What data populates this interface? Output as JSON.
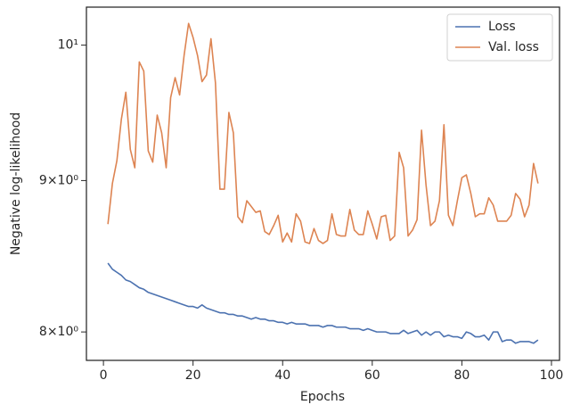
{
  "chart_data": {
    "type": "line",
    "xlabel": "Epochs",
    "ylabel": "Negative log-likelihood",
    "x": [
      1,
      2,
      3,
      4,
      5,
      6,
      7,
      8,
      9,
      10,
      11,
      12,
      13,
      14,
      15,
      16,
      17,
      18,
      19,
      20,
      21,
      22,
      23,
      24,
      25,
      26,
      27,
      28,
      29,
      30,
      31,
      32,
      33,
      34,
      35,
      36,
      37,
      38,
      39,
      40,
      41,
      42,
      43,
      44,
      45,
      46,
      47,
      48,
      49,
      50,
      51,
      52,
      53,
      54,
      55,
      56,
      57,
      58,
      59,
      60,
      61,
      62,
      63,
      64,
      65,
      66,
      67,
      68,
      69,
      70,
      71,
      72,
      73,
      74,
      75,
      76,
      77,
      78,
      79,
      80,
      81,
      82,
      83,
      84,
      85,
      86,
      87,
      88,
      89,
      90,
      91,
      92,
      93,
      94,
      95,
      96,
      97
    ],
    "series": [
      {
        "name": "Loss",
        "color": "#4c72b0",
        "values": [
          8.44,
          8.4,
          8.38,
          8.36,
          8.33,
          8.32,
          8.3,
          8.28,
          8.27,
          8.25,
          8.24,
          8.23,
          8.22,
          8.21,
          8.2,
          8.19,
          8.18,
          8.17,
          8.16,
          8.16,
          8.15,
          8.17,
          8.15,
          8.14,
          8.13,
          8.12,
          8.12,
          8.11,
          8.11,
          8.1,
          8.1,
          8.09,
          8.08,
          8.09,
          8.08,
          8.08,
          8.07,
          8.07,
          8.06,
          8.06,
          8.05,
          8.06,
          8.05,
          8.05,
          8.05,
          8.04,
          8.04,
          8.04,
          8.03,
          8.04,
          8.04,
          8.03,
          8.03,
          8.03,
          8.02,
          8.02,
          8.02,
          8.01,
          8.02,
          8.01,
          8.0,
          8.0,
          8.0,
          7.99,
          7.99,
          7.99,
          8.01,
          7.99,
          8.0,
          8.01,
          7.98,
          8.0,
          7.98,
          8.0,
          8.0,
          7.97,
          7.98,
          7.97,
          7.97,
          7.96,
          8.0,
          7.99,
          7.97,
          7.97,
          7.98,
          7.95,
          8.0,
          8.0,
          7.94,
          7.95,
          7.95,
          7.93,
          7.94,
          7.94,
          7.94,
          7.93,
          7.95
        ]
      },
      {
        "name": "Val. loss",
        "color": "#dd8452",
        "values": [
          8.7,
          8.98,
          9.14,
          9.44,
          9.64,
          9.22,
          9.09,
          9.87,
          9.8,
          9.21,
          9.13,
          9.47,
          9.34,
          9.09,
          9.6,
          9.75,
          9.62,
          9.92,
          10.17,
          10.06,
          9.92,
          9.72,
          9.77,
          10.05,
          9.71,
          8.94,
          8.94,
          9.49,
          9.34,
          8.75,
          8.71,
          8.86,
          8.82,
          8.78,
          8.79,
          8.65,
          8.63,
          8.69,
          8.76,
          8.58,
          8.64,
          8.58,
          8.77,
          8.72,
          8.58,
          8.57,
          8.67,
          8.59,
          8.57,
          8.59,
          8.77,
          8.63,
          8.62,
          8.62,
          8.8,
          8.66,
          8.63,
          8.63,
          8.79,
          8.7,
          8.6,
          8.75,
          8.76,
          8.59,
          8.62,
          9.2,
          9.09,
          8.62,
          8.66,
          8.73,
          9.36,
          8.97,
          8.69,
          8.72,
          8.86,
          9.4,
          8.76,
          8.69,
          8.86,
          9.02,
          9.04,
          8.91,
          8.75,
          8.77,
          8.77,
          8.88,
          8.83,
          8.72,
          8.72,
          8.72,
          8.76,
          8.91,
          8.87,
          8.75,
          8.83,
          9.12,
          8.98
        ]
      }
    ],
    "xlim": [
      -3.8,
      101.8
    ],
    "xticks": [
      0,
      20,
      40,
      60,
      80,
      100
    ],
    "ylim": [
      7.825,
      10.3
    ],
    "ylog": true,
    "yticks": [
      {
        "value": 8,
        "label": "8×10⁰"
      },
      {
        "value": 9,
        "label": "9×10⁰"
      },
      {
        "value": 10,
        "label": "10¹"
      }
    ],
    "legend": "upper right"
  }
}
